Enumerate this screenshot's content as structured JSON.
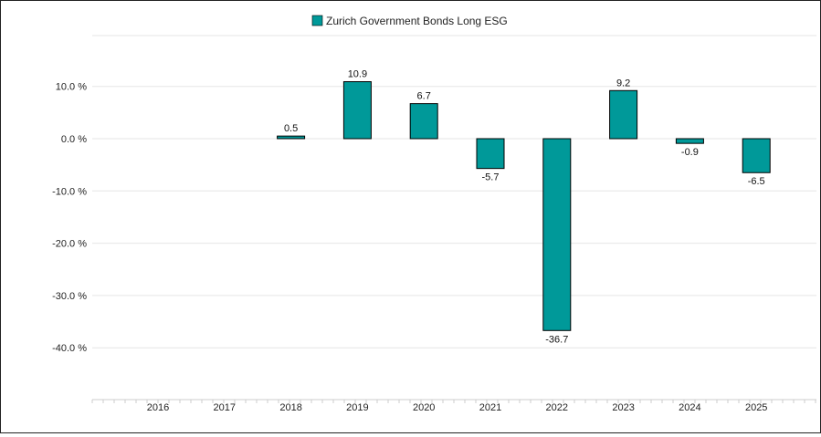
{
  "chart_data": {
    "type": "bar",
    "title": "",
    "xlabel": "",
    "ylabel": "",
    "legend": {
      "position": "top-center"
    },
    "categories": [
      "2016",
      "2017",
      "2018",
      "2019",
      "2020",
      "2021",
      "2022",
      "2023",
      "2024",
      "2025"
    ],
    "series": [
      {
        "name": "Zurich Government Bonds Long ESG",
        "color": "#009999",
        "values": [
          null,
          null,
          0.5,
          10.9,
          6.7,
          -5.7,
          -36.7,
          9.2,
          -0.9,
          -6.5
        ],
        "labels": [
          "",
          "",
          "0.5",
          "10.9",
          "6.7",
          "-5.7",
          "-36.7",
          "9.2",
          "-0.9",
          "-6.5"
        ]
      }
    ],
    "yticks": [
      10,
      0,
      -10,
      -20,
      -30,
      -40
    ],
    "ytick_labels": [
      "10.0 %",
      "0.0 %",
      "-10.0 %",
      "-20.0 %",
      "-30.0 %",
      "-40.0 %"
    ],
    "ylim": [
      -50,
      20
    ],
    "grid": true,
    "colors": {
      "bar": "#009999",
      "bar_border": "#000000",
      "grid": "#e6e6e6",
      "axis": "#cccccc"
    }
  }
}
